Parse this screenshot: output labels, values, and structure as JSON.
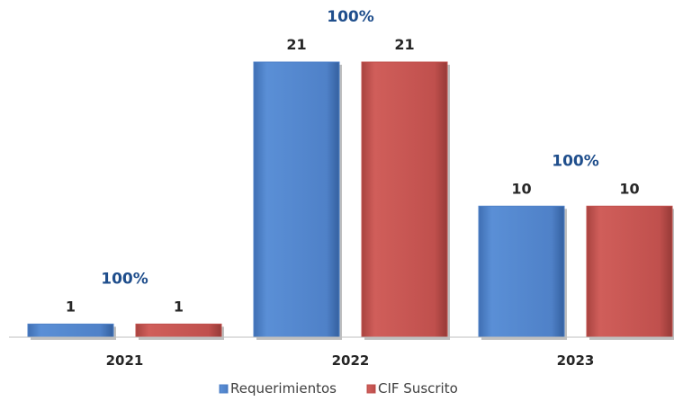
{
  "chart_data": {
    "type": "bar",
    "categories": [
      "2021",
      "2022",
      "2023"
    ],
    "series": [
      {
        "name": "Requerimientos",
        "values": [
          1,
          21,
          10
        ],
        "color": "#4f81c8"
      },
      {
        "name": "CIF Suscrito",
        "values": [
          1,
          21,
          10
        ],
        "color": "#c0504d"
      }
    ],
    "annotations": [
      "100%",
      "100%",
      "100%"
    ],
    "ylim": [
      0,
      21
    ],
    "grid": false,
    "legend_position": "bottom"
  }
}
